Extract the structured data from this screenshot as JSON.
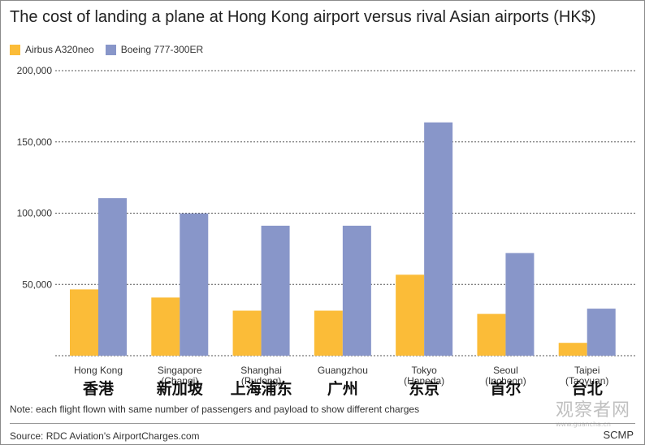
{
  "chart_data": {
    "type": "bar",
    "title": "The cost of landing a plane at Hong Kong airport versus rival Asian airports (HK$)",
    "categories": [
      {
        "name": "Hong Kong",
        "chinese": "香港"
      },
      {
        "name": "Singapore (Changi)",
        "chinese": "新加坡"
      },
      {
        "name": "Shanghai (Pudong)",
        "chinese": "上海浦东"
      },
      {
        "name": "Guangzhou",
        "chinese": "广州"
      },
      {
        "name": "Tokyo (Haneda)",
        "chinese": "东京"
      },
      {
        "name": "Seoul (Incheon)",
        "chinese": "首尔"
      },
      {
        "name": "Taipei (Taoyuan)",
        "chinese": "台北"
      }
    ],
    "series": [
      {
        "name": "Airbus A320neo",
        "color": "#fbbc38",
        "values": [
          46500,
          40800,
          31600,
          31600,
          56800,
          29300,
          9000
        ]
      },
      {
        "name": "Boeing 777-300ER",
        "color": "#8896c9",
        "values": [
          110500,
          99800,
          91200,
          91200,
          163700,
          72000,
          33000
        ]
      }
    ],
    "ylim": [
      0,
      200000
    ],
    "yticks": [
      {
        "value": 50000,
        "label": "50,000"
      },
      {
        "value": 100000,
        "label": "100,000"
      },
      {
        "value": 150000,
        "label": "150,000"
      },
      {
        "value": 200000,
        "label": "200,000"
      }
    ],
    "grid": true,
    "legend": "top-left",
    "note": "Note: each flight flown with same number of passengers and payload to show different charges",
    "source": "Source: RDC Aviation's AirportCharges.com",
    "credit": "SCMP"
  },
  "watermark": {
    "text": "观察者网",
    "url": "www.guancha.cn"
  }
}
